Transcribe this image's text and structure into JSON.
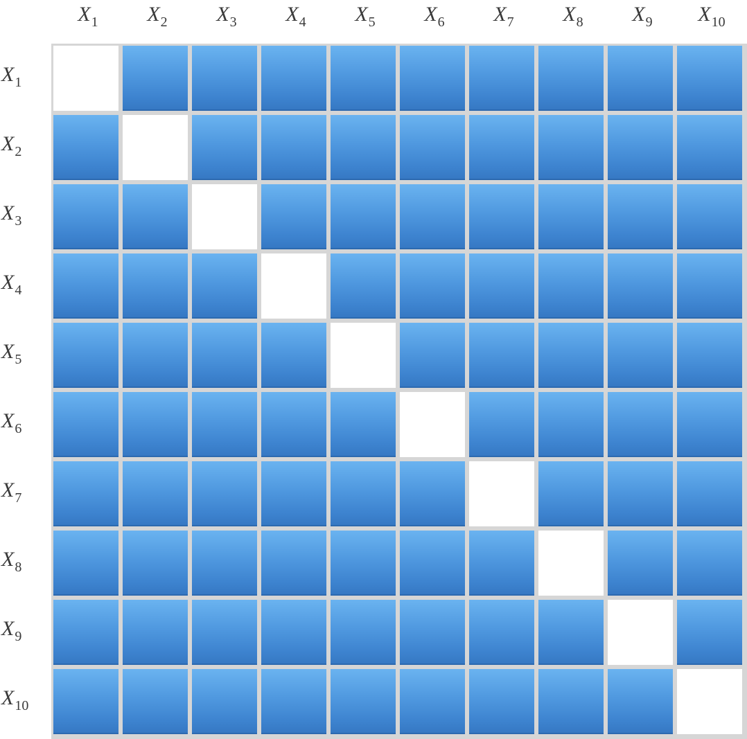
{
  "variables": [
    {
      "base": "X",
      "sub": "1"
    },
    {
      "base": "X",
      "sub": "2"
    },
    {
      "base": "X",
      "sub": "3"
    },
    {
      "base": "X",
      "sub": "4"
    },
    {
      "base": "X",
      "sub": "5"
    },
    {
      "base": "X",
      "sub": "6"
    },
    {
      "base": "X",
      "sub": "7"
    },
    {
      "base": "X",
      "sub": "8"
    },
    {
      "base": "X",
      "sub": "9"
    },
    {
      "base": "X",
      "sub": "10"
    }
  ],
  "matrix": {
    "diagonal": "empty",
    "off_diagonal": "filled"
  },
  "colors": {
    "fill_top": "#6ab3f0",
    "fill_bottom": "#3577c2",
    "empty": "#ffffff",
    "grid_line": "#d6d6d6",
    "label_text": "#3a3a3a"
  }
}
